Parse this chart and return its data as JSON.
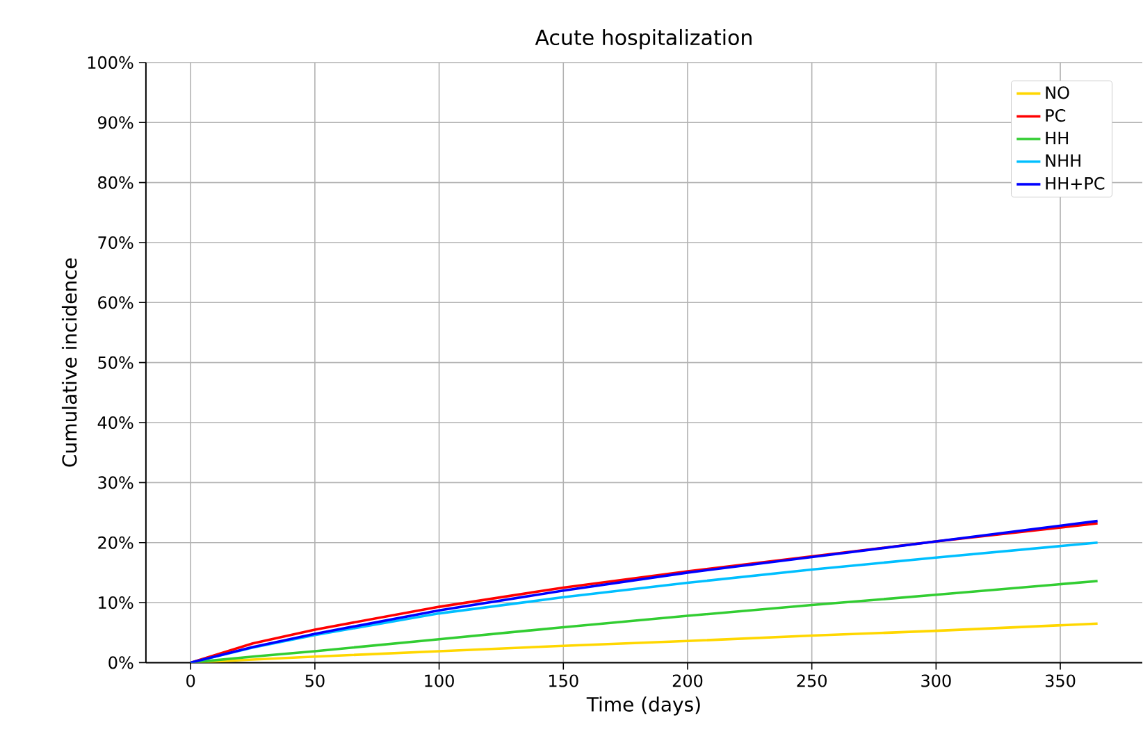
{
  "chart_data": {
    "type": "line",
    "title": "Acute hospitalization",
    "xlabel": "Time (days)",
    "ylabel": "Cumulative incidence",
    "x": [
      0,
      25,
      50,
      100,
      150,
      200,
      250,
      300,
      365
    ],
    "series": [
      {
        "name": "NO",
        "color": "#ffd700",
        "values": [
          0,
          0.5,
          1.0,
          1.9,
          2.8,
          3.6,
          4.5,
          5.3,
          6.5
        ]
      },
      {
        "name": "PC",
        "color": "#ff0000",
        "values": [
          0,
          3.2,
          5.5,
          9.3,
          12.5,
          15.2,
          17.7,
          20.2,
          23.2
        ]
      },
      {
        "name": "HH",
        "color": "#32cd32",
        "values": [
          0,
          1.0,
          1.9,
          3.9,
          5.9,
          7.8,
          9.6,
          11.3,
          13.6
        ]
      },
      {
        "name": "NHH",
        "color": "#00bfff",
        "values": [
          0,
          2.5,
          4.6,
          8.2,
          10.9,
          13.3,
          15.5,
          17.5,
          20.0
        ]
      },
      {
        "name": "HH+PC",
        "color": "#0000ff",
        "values": [
          0,
          2.6,
          4.8,
          8.7,
          12.0,
          15.0,
          17.6,
          20.2,
          23.6
        ]
      }
    ],
    "xlim": [
      -18,
      383
    ],
    "ylim": [
      0,
      100
    ],
    "xticks": [
      0,
      50,
      100,
      150,
      200,
      250,
      300,
      350
    ],
    "yticks": [
      {
        "value": 0,
        "label": "0%"
      },
      {
        "value": 10,
        "label": "10%"
      },
      {
        "value": 20,
        "label": "20%"
      },
      {
        "value": 30,
        "label": "30%"
      },
      {
        "value": 40,
        "label": "40%"
      },
      {
        "value": 50,
        "label": "50%"
      },
      {
        "value": 60,
        "label": "60%"
      },
      {
        "value": 70,
        "label": "70%"
      },
      {
        "value": 80,
        "label": "80%"
      },
      {
        "value": 90,
        "label": "90%"
      },
      {
        "value": 100,
        "label": "100%"
      }
    ],
    "grid": true,
    "legend": "top right",
    "marker": "none",
    "line_style": "solid"
  }
}
